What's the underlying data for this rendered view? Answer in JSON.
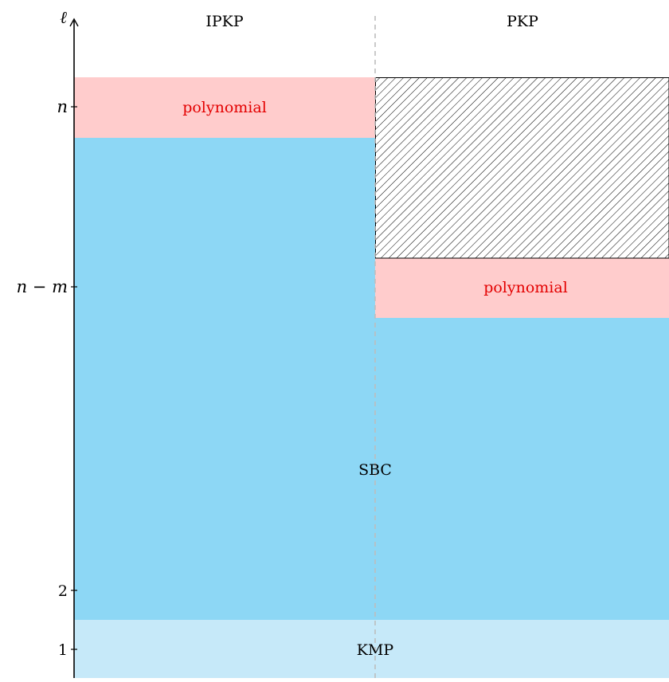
{
  "axis": {
    "label": "ℓ",
    "ticks": [
      {
        "label": "n",
        "math": true
      },
      {
        "label": "n − m",
        "math": true
      },
      {
        "label": "2",
        "math": false
      },
      {
        "label": "1",
        "math": false
      }
    ]
  },
  "columns": {
    "left": "IPKP",
    "right": "PKP"
  },
  "regions": {
    "left_polynomial": "polynomial",
    "right_polynomial": "polynomial",
    "sbc": "SBC",
    "kmp": "KMP"
  },
  "colors": {
    "polynomial": "#ffcccc",
    "sbc": "#8dd7f5",
    "kmp": "#c6e9f9",
    "polynomial_text": "#e30000",
    "divider": "#bdbdbd"
  }
}
